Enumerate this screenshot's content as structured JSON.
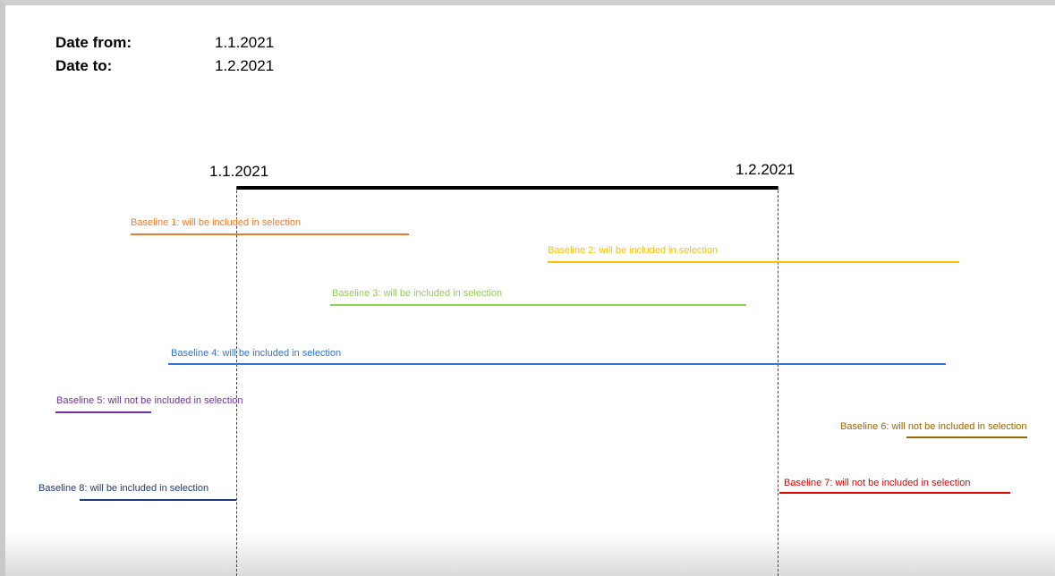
{
  "header": {
    "date_from_label": "Date from:",
    "date_from_value": "1.1.2021",
    "date_to_label": "Date to:",
    "date_to_value": "1.2.2021"
  },
  "timeline": {
    "start_label": "1.1.2021",
    "end_label": "1.2.2021"
  },
  "baselines": [
    {
      "label": "Baseline 1: will be included in selection",
      "color": "#ED7D31"
    },
    {
      "label": "Baseline 2: will be included in selection",
      "color": "#FFC000"
    },
    {
      "label": "Baseline 3: will be included in selection",
      "color": "#92D050"
    },
    {
      "label": "Baseline 4: will be included in selection",
      "color": "#2E75D6"
    },
    {
      "label": "Baseline 5: will not be included in selection",
      "color": "#7030A0"
    },
    {
      "label": "Baseline 6: will not be included in selection",
      "color": "#9C6500"
    },
    {
      "label": "Baseline 7: will not be included in selection",
      "color": "#E00000"
    },
    {
      "label": "Baseline 8: will be included in selection",
      "color": "#1F3A7A"
    }
  ]
}
